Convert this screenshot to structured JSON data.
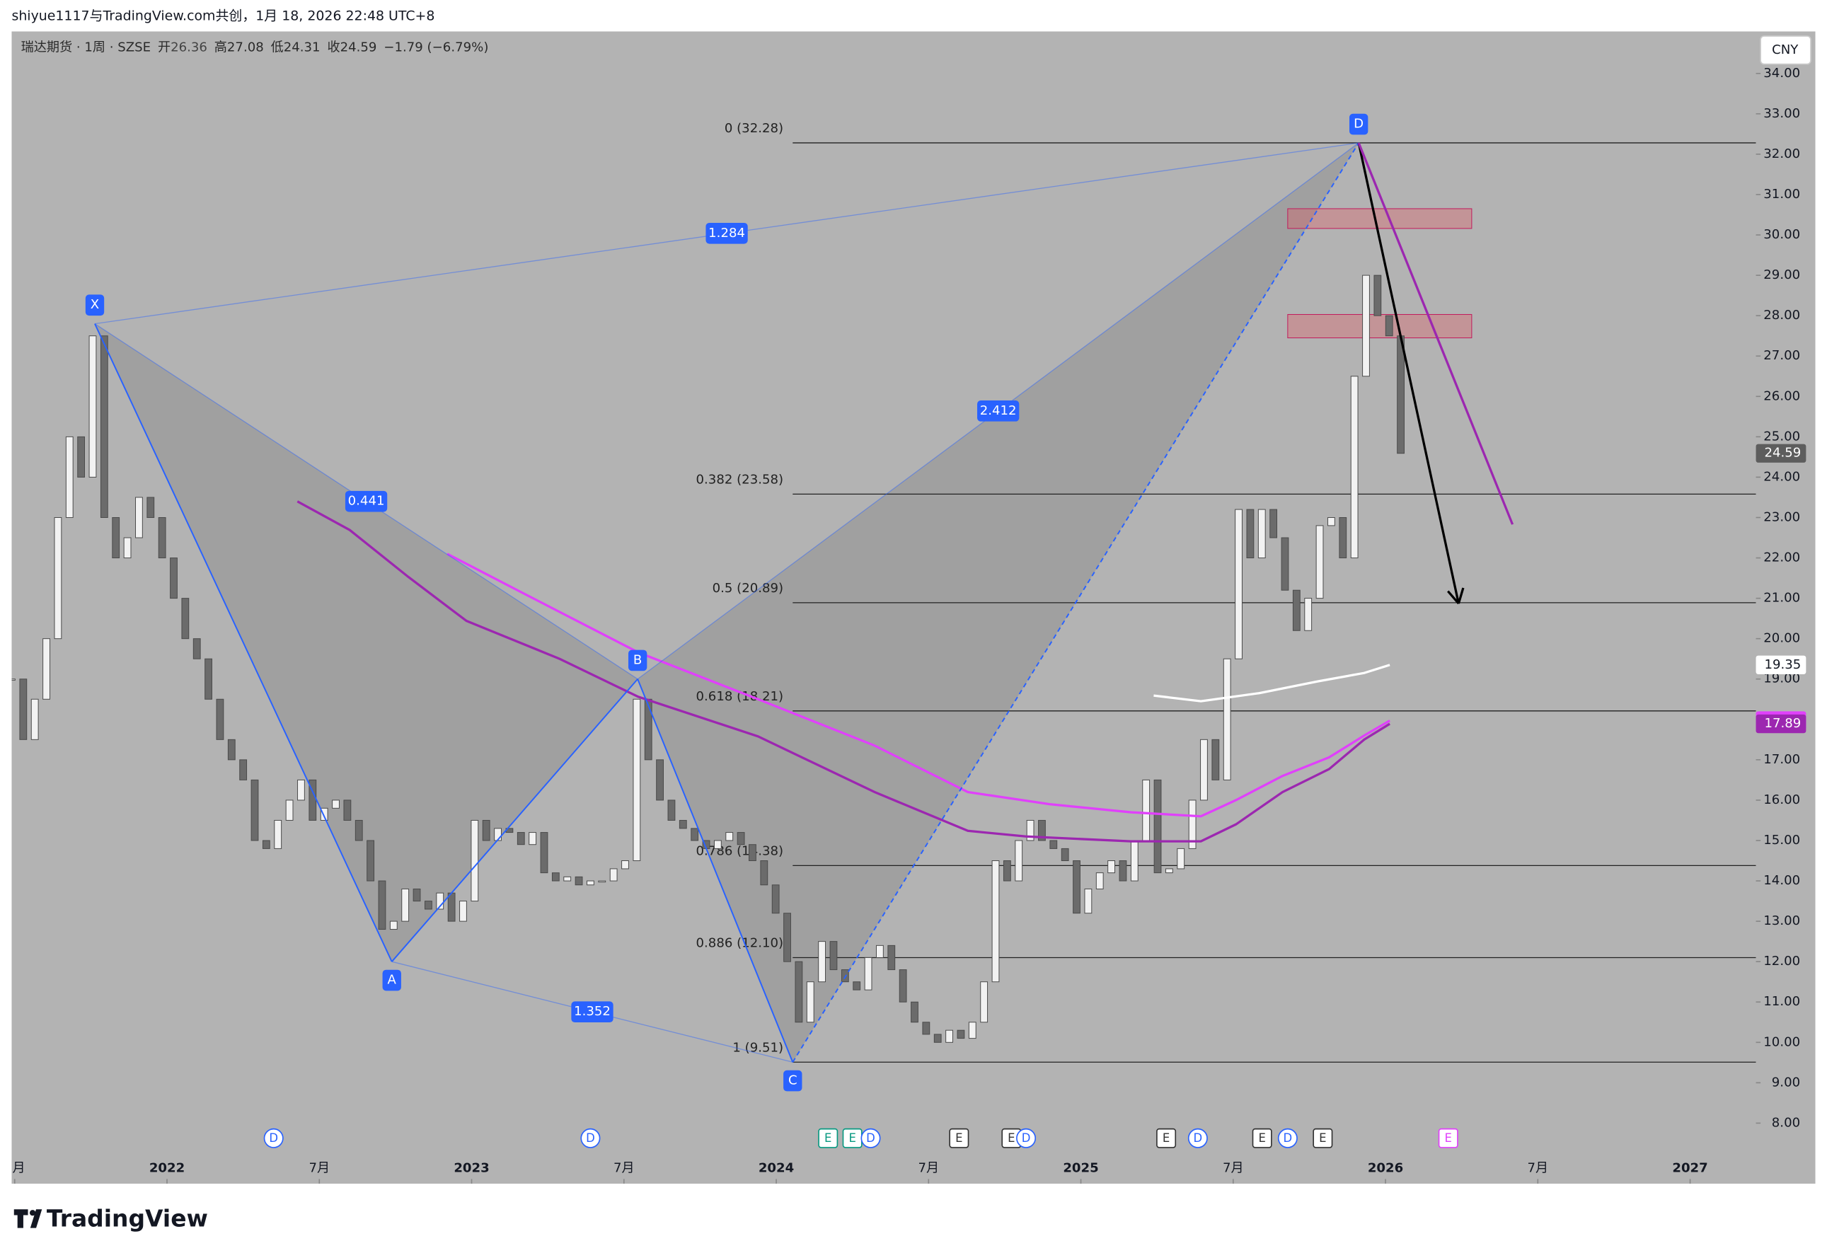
{
  "header": {
    "attribution": "shiyue1117与TradingView.com共创，1月 18, 2026 22:48 UTC+8"
  },
  "legend": {
    "symbol": "瑞达期货 · 1周 · SZSE",
    "open_label": "开",
    "open": 26.36,
    "high_label": "高",
    "high": 27.08,
    "low_label": "低",
    "low": 24.31,
    "close_label": "收",
    "close": 24.59,
    "change": "−1.79 (−6.79%)"
  },
  "currency": "CNY",
  "brand": "TradingView",
  "chart_data": {
    "type": "candlestick",
    "xlim": [
      2021.49,
      2027.216
    ],
    "ylim": [
      6.5,
      35.04
    ],
    "yticks": [
      {
        "value": 34,
        "label": "34.00"
      },
      {
        "value": 33,
        "label": "33.00"
      },
      {
        "value": 32,
        "label": "32.00"
      },
      {
        "value": 31,
        "label": "31.00"
      },
      {
        "value": 30,
        "label": "30.00"
      },
      {
        "value": 29,
        "label": "29.00"
      },
      {
        "value": 28,
        "label": "28.00"
      },
      {
        "value": 27,
        "label": "27.00"
      },
      {
        "value": 26,
        "label": "26.00"
      },
      {
        "value": 25,
        "label": "25.00"
      },
      {
        "value": 24,
        "label": "24.00"
      },
      {
        "value": 23,
        "label": "23.00"
      },
      {
        "value": 22,
        "label": "22.00"
      },
      {
        "value": 21,
        "label": "21.00"
      },
      {
        "value": 20,
        "label": "20.00"
      },
      {
        "value": 19,
        "label": "19.00"
      },
      {
        "value": 18,
        "label": "18.00"
      },
      {
        "value": 17,
        "label": "17.00"
      },
      {
        "value": 16,
        "label": "16.00"
      },
      {
        "value": 15,
        "label": "15.00"
      },
      {
        "value": 14,
        "label": "14.00"
      },
      {
        "value": 13,
        "label": "13.00"
      },
      {
        "value": 12,
        "label": "12.00"
      },
      {
        "value": 11,
        "label": "11.00"
      },
      {
        "value": 10,
        "label": "10.00"
      },
      {
        "value": 9,
        "label": "9.00"
      },
      {
        "value": 8,
        "label": "8.00"
      }
    ],
    "xticks": [
      {
        "value": 2021.5,
        "label": "7月"
      },
      {
        "value": 2022,
        "label": "2022"
      },
      {
        "value": 2022.5,
        "label": "7月"
      },
      {
        "value": 2023,
        "label": "2023"
      },
      {
        "value": 2023.5,
        "label": "7月"
      },
      {
        "value": 2024,
        "label": "2024"
      },
      {
        "value": 2024.5,
        "label": "7月"
      },
      {
        "value": 2025,
        "label": "2025"
      },
      {
        "value": 2025.5,
        "label": "7月"
      },
      {
        "value": 2026,
        "label": "2026"
      },
      {
        "value": 2026.5,
        "label": "7月"
      },
      {
        "value": 2027,
        "label": "2027"
      }
    ],
    "candles": {
      "period": [
        2021.49,
        2026.05
      ],
      "closes": [
        19,
        17.5,
        18.5,
        20,
        23,
        25,
        24,
        27.5,
        23,
        22,
        22.5,
        23.5,
        23,
        22,
        21,
        20,
        19.5,
        18.5,
        17.5,
        17,
        16.5,
        15,
        14.8,
        15.5,
        16,
        16.5,
        15.5,
        15.8,
        16,
        15.5,
        15,
        14,
        12.8,
        13,
        13.8,
        13.5,
        13.3,
        13.7,
        13,
        13.5,
        15.5,
        15,
        15.3,
        15.2,
        14.9,
        15.2,
        14.2,
        14,
        14.1,
        13.9,
        14,
        14,
        14.3,
        14.5,
        18.5,
        17,
        16,
        15.5,
        15.3,
        15,
        14.8,
        15,
        15.2,
        14.9,
        14.5,
        13.9,
        13.2,
        12,
        10.5,
        11.5,
        12.5,
        11.8,
        11.5,
        11.3,
        12.1,
        12.4,
        11.8,
        11,
        10.5,
        10.2,
        10,
        10.3,
        10.1,
        10.5,
        11.5,
        14.5,
        14,
        15,
        15.5,
        15,
        14.8,
        14.5,
        13.2,
        13.8,
        14.2,
        14.5,
        14,
        15,
        16.5,
        14.2,
        14.3,
        14.8,
        16,
        17.5,
        16.5,
        19.5,
        23.2,
        22,
        23.2,
        22.5,
        21.2,
        20.2,
        21,
        22.8,
        23,
        22,
        26.5,
        29,
        28,
        27.5,
        24.59
      ]
    },
    "moving_averages": [
      {
        "color": "#e040fb",
        "x": [
          2022.92,
          2023.176,
          2023.547,
          2023.94,
          2024.323,
          2024.629,
          2024.897,
          2025.164,
          2025.394,
          2025.509,
          2025.662,
          2025.815,
          2025.93,
          2026.014
        ],
        "values": [
          22.1,
          21.1,
          19.66,
          18.5,
          17.35,
          16.2,
          15.9,
          15.7,
          15.6,
          16,
          16.6,
          17.06,
          17.6,
          17.97
        ]
      },
      {
        "color": "#9c27b0",
        "x": [
          2022.428,
          2022.6,
          2022.792,
          2022.983,
          2023.289,
          2023.547,
          2023.94,
          2024.323,
          2024.629,
          2024.82,
          2025.164,
          2025.394,
          2025.509,
          2025.662,
          2025.815,
          2025.93,
          2026.014
        ],
        "values": [
          23.4,
          22.69,
          21.53,
          20.44,
          19.5,
          18.56,
          17.58,
          16.2,
          15.24,
          15.1,
          14.98,
          14.98,
          15.4,
          16.2,
          16.77,
          17.5,
          17.89
        ]
      },
      {
        "color": "#ffffff",
        "x": [
          2025.239,
          2025.394,
          2025.585,
          2025.777,
          2025.93,
          2026.014
        ],
        "values": [
          18.59,
          18.45,
          18.65,
          18.94,
          19.15,
          19.35
        ]
      }
    ],
    "price_tags": [
      {
        "value": 24.59,
        "label": "24.59",
        "color": "#5d5d5d"
      },
      {
        "value": 19.35,
        "label": "19.35",
        "color": "#ffffff"
      },
      {
        "value": 17.97,
        "label": "17.97",
        "color": "#e040fb"
      },
      {
        "value": 17.89,
        "label": "17.89",
        "color": "#9c27b0"
      }
    ],
    "pattern": {
      "points": [
        {
          "label": "X",
          "t": 2021.763,
          "price": 27.8
        },
        {
          "label": "A",
          "t": 2022.738,
          "price": 12.0
        },
        {
          "label": "B",
          "t": 2023.545,
          "price": 19.0
        },
        {
          "label": "C",
          "t": 2024.054,
          "price": 9.51
        },
        {
          "label": "D",
          "t": 2025.912,
          "price": 32.28
        }
      ],
      "ratios": [
        {
          "label": "0.441",
          "from": 0,
          "to": 2
        },
        {
          "label": "1.352",
          "from": 1,
          "to": 3
        },
        {
          "label": "2.412",
          "from": 2,
          "to": 4
        },
        {
          "label": "1.284",
          "from": 0,
          "to": 4
        }
      ]
    },
    "fib": {
      "levels": [
        {
          "label": "0 (32.28)",
          "value": 32.28
        },
        {
          "label": "0.382 (23.58)",
          "value": 23.58
        },
        {
          "label": "0.5 (20.89)",
          "value": 20.89
        },
        {
          "label": "0.618 (18.21)",
          "value": 18.21
        },
        {
          "label": "0.786 (14.38)",
          "value": 14.38
        },
        {
          "label": "0.886 (12.10)",
          "value": 12.1
        },
        {
          "label": "1 (9.51)",
          "value": 9.51
        }
      ],
      "start": 2024.054
    },
    "zones": [
      {
        "t": [
          2025.679,
          2026.283
        ],
        "price": [
          30.16,
          30.65
        ]
      },
      {
        "t": [
          2025.679,
          2026.283
        ],
        "price": [
          27.45,
          28.03
        ]
      }
    ],
    "arrows": [
      {
        "color": "#000000",
        "t": [
          2025.912,
          2026.24
        ],
        "price": [
          32.28,
          20.87
        ]
      },
      {
        "color": "#9c27b0",
        "t": [
          2025.912,
          2026.417
        ],
        "price": [
          32.28,
          22.83
        ]
      }
    ],
    "events": [
      {
        "t": 2022.35,
        "label": "D",
        "kind": "div"
      },
      {
        "t": 2023.39,
        "label": "D",
        "kind": "div"
      },
      {
        "t": 2024.17,
        "label": "E",
        "kind": "green"
      },
      {
        "t": 2024.25,
        "label": "E",
        "kind": "green"
      },
      {
        "t": 2024.31,
        "label": "D",
        "kind": "div"
      },
      {
        "t": 2024.6,
        "label": "E",
        "kind": "earn"
      },
      {
        "t": 2024.772,
        "label": "E",
        "kind": "earn"
      },
      {
        "t": 2024.82,
        "label": "D",
        "kind": "div"
      },
      {
        "t": 2025.28,
        "label": "E",
        "kind": "earn"
      },
      {
        "t": 2025.384,
        "label": "D",
        "kind": "div"
      },
      {
        "t": 2025.595,
        "label": "E",
        "kind": "earn"
      },
      {
        "t": 2025.679,
        "label": "D",
        "kind": "div"
      },
      {
        "t": 2025.794,
        "label": "E",
        "kind": "earn"
      },
      {
        "t": 2026.206,
        "label": "E",
        "kind": "magenta"
      }
    ]
  }
}
